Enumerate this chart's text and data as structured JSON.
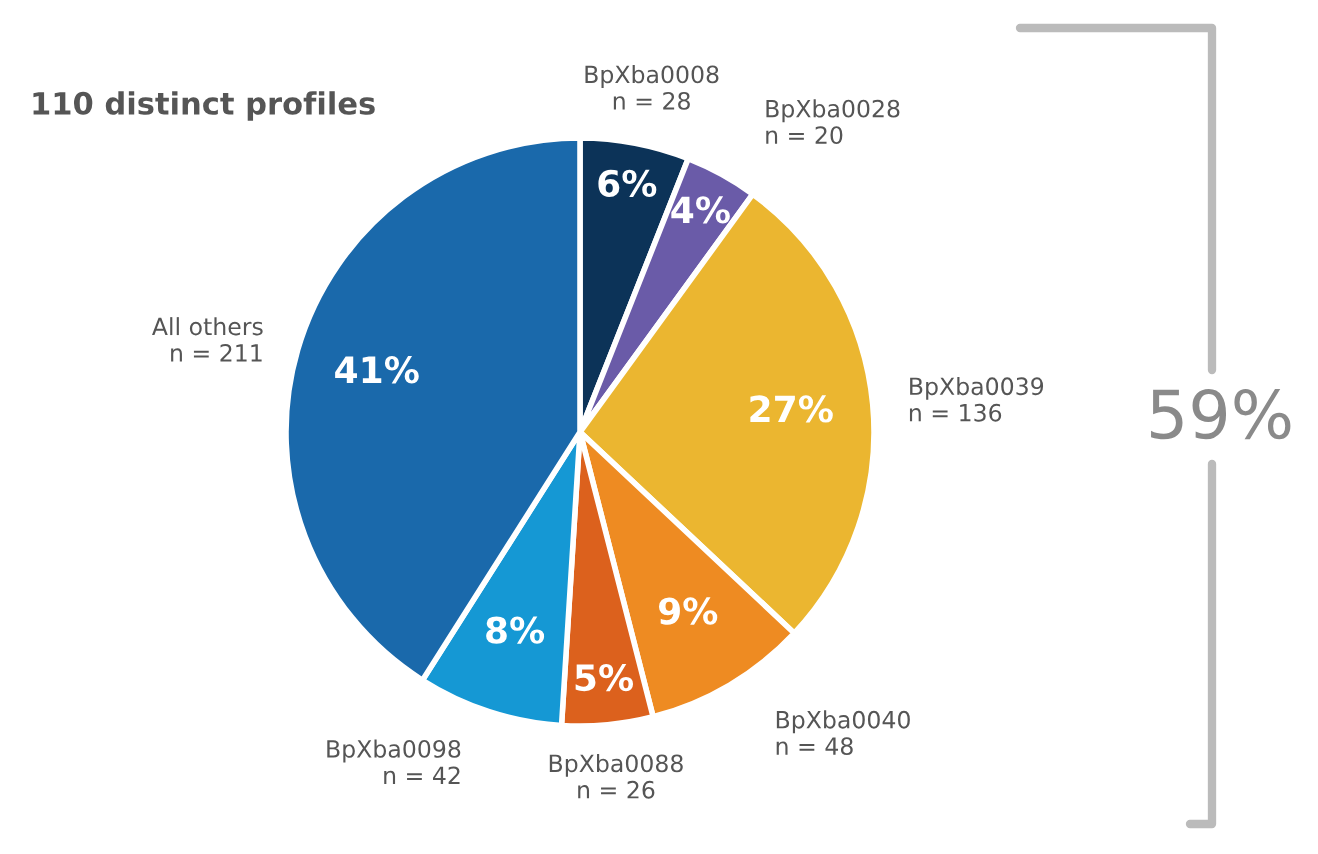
{
  "chart_data": {
    "type": "pie",
    "title": "110 distinct profiles",
    "categories": [
      "BpXba0008\nn = 28",
      "BpXba0028\nn = 20",
      "BpXba0039\nn = 136",
      "BpXba0040\nn = 48",
      "BpXba0088\nn = 26",
      "BpXba0098\nn = 42",
      "All others\nn = 211"
    ],
    "values": [
      6,
      4,
      27,
      9,
      5,
      8,
      41
    ],
    "value_labels": [
      "6%",
      "4%",
      "27%",
      "9%",
      "5%",
      "8%",
      "41%"
    ],
    "colors": [
      "#0c3358",
      "#6a5ba8",
      "#ebb630",
      "#ee8b22",
      "#dc611d",
      "#1598d4",
      "#1a69ab"
    ],
    "annotations": [
      "59%"
    ]
  }
}
